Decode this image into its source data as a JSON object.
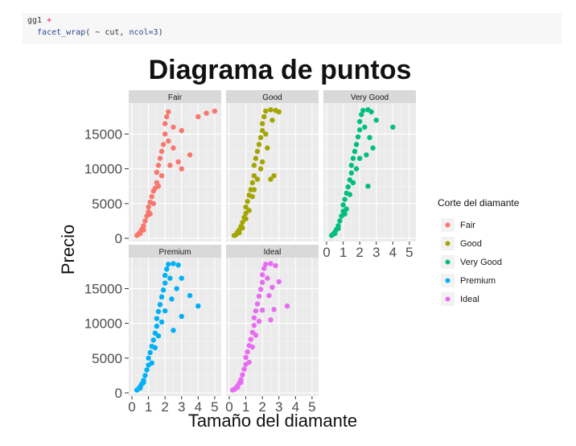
{
  "code": {
    "line1_a": "gg1 ",
    "line1_b": "+",
    "line2_a": "  facet_wrap",
    "line2_b": "( ~ cut, ",
    "line2_c": "ncol=3",
    "line2_d": ")"
  },
  "chart_data": {
    "type": "scatter",
    "title": "Diagrama de puntos",
    "xlabel": "Tamaño del diamante",
    "ylabel": "Precio",
    "xlim": [
      0,
      5.2
    ],
    "ylim": [
      0,
      19000
    ],
    "x_ticks": [
      0,
      1,
      2,
      3,
      4,
      5
    ],
    "y_ticks": [
      0,
      5000,
      10000,
      15000
    ],
    "y_tick_labels": [
      "0",
      "5000",
      "10000",
      "15000"
    ],
    "grid": true,
    "legend": {
      "title": "Corte del diamante",
      "position": "right"
    },
    "facets": [
      {
        "name": "Fair",
        "color": "#F8766D",
        "points": [
          [
            0.3,
            400
          ],
          [
            0.4,
            600
          ],
          [
            0.5,
            900
          ],
          [
            0.6,
            1300
          ],
          [
            0.7,
            1800
          ],
          [
            0.8,
            2500
          ],
          [
            0.9,
            3200
          ],
          [
            1.0,
            3800
          ],
          [
            1.0,
            4500
          ],
          [
            1.1,
            5200
          ],
          [
            1.2,
            6000
          ],
          [
            1.3,
            6800
          ],
          [
            1.4,
            7200
          ],
          [
            1.5,
            8000
          ],
          [
            1.5,
            9500
          ],
          [
            1.6,
            10500
          ],
          [
            1.7,
            11500
          ],
          [
            1.8,
            12500
          ],
          [
            1.9,
            13500
          ],
          [
            2.0,
            15000
          ],
          [
            2.0,
            16500
          ],
          [
            2.1,
            17500
          ],
          [
            2.2,
            18200
          ],
          [
            2.5,
            16000
          ],
          [
            3.0,
            15500
          ],
          [
            3.0,
            10000
          ],
          [
            4.0,
            17500
          ],
          [
            4.5,
            18000
          ],
          [
            5.0,
            18300
          ],
          [
            2.5,
            13000
          ],
          [
            2.2,
            14000
          ],
          [
            1.8,
            9000
          ],
          [
            1.3,
            5000
          ],
          [
            0.7,
            1200
          ],
          [
            0.5,
            700
          ],
          [
            3.5,
            12000
          ],
          [
            2.8,
            11000
          ],
          [
            1.6,
            7500
          ],
          [
            1.1,
            3500
          ],
          [
            2.3,
            10500
          ]
        ]
      },
      {
        "name": "Good",
        "color": "#A3A500",
        "points": [
          [
            0.3,
            400
          ],
          [
            0.4,
            500
          ],
          [
            0.5,
            900
          ],
          [
            0.6,
            1200
          ],
          [
            0.7,
            1700
          ],
          [
            0.8,
            2300
          ],
          [
            0.9,
            3000
          ],
          [
            1.0,
            3600
          ],
          [
            1.0,
            4500
          ],
          [
            1.1,
            5300
          ],
          [
            1.2,
            6200
          ],
          [
            1.3,
            7000
          ],
          [
            1.4,
            8000
          ],
          [
            1.5,
            9000
          ],
          [
            1.5,
            10500
          ],
          [
            1.6,
            11500
          ],
          [
            1.7,
            12500
          ],
          [
            1.8,
            13500
          ],
          [
            1.9,
            14500
          ],
          [
            2.0,
            15500
          ],
          [
            2.0,
            16500
          ],
          [
            2.1,
            17500
          ],
          [
            2.2,
            18300
          ],
          [
            2.5,
            18500
          ],
          [
            2.8,
            18400
          ],
          [
            3.0,
            18200
          ],
          [
            2.5,
            8500
          ],
          [
            2.3,
            13000
          ],
          [
            1.2,
            4000
          ],
          [
            0.8,
            1500
          ],
          [
            1.7,
            8500
          ],
          [
            2.6,
            17000
          ],
          [
            2.0,
            11000
          ],
          [
            1.4,
            6000
          ],
          [
            0.6,
            800
          ],
          [
            2.2,
            15000
          ],
          [
            1.9,
            10000
          ],
          [
            1.5,
            7000
          ],
          [
            2.7,
            9000
          ],
          [
            1.0,
            2800
          ]
        ]
      },
      {
        "name": "Very Good",
        "color": "#00BF7D",
        "points": [
          [
            0.3,
            400
          ],
          [
            0.4,
            600
          ],
          [
            0.5,
            900
          ],
          [
            0.6,
            1300
          ],
          [
            0.7,
            1800
          ],
          [
            0.8,
            2500
          ],
          [
            0.9,
            3200
          ],
          [
            1.0,
            3900
          ],
          [
            1.0,
            4800
          ],
          [
            1.1,
            5600
          ],
          [
            1.2,
            6500
          ],
          [
            1.3,
            7400
          ],
          [
            1.4,
            8400
          ],
          [
            1.5,
            9400
          ],
          [
            1.5,
            10500
          ],
          [
            1.6,
            11500
          ],
          [
            1.7,
            12500
          ],
          [
            1.8,
            13500
          ],
          [
            1.9,
            14600
          ],
          [
            2.0,
            15600
          ],
          [
            2.0,
            16800
          ],
          [
            2.1,
            17800
          ],
          [
            2.2,
            18400
          ],
          [
            2.5,
            18500
          ],
          [
            2.7,
            18200
          ],
          [
            3.0,
            17000
          ],
          [
            4.0,
            16000
          ],
          [
            2.5,
            7500
          ],
          [
            2.4,
            12000
          ],
          [
            1.2,
            4200
          ],
          [
            0.7,
            1400
          ],
          [
            1.6,
            8000
          ],
          [
            2.3,
            16000
          ],
          [
            2.0,
            11500
          ],
          [
            1.4,
            6300
          ],
          [
            0.5,
            700
          ],
          [
            2.6,
            14500
          ],
          [
            1.8,
            10000
          ],
          [
            1.1,
            3500
          ],
          [
            2.8,
            13000
          ]
        ]
      },
      {
        "name": "Premium",
        "color": "#00B0F6",
        "points": [
          [
            0.3,
            400
          ],
          [
            0.4,
            600
          ],
          [
            0.5,
            900
          ],
          [
            0.6,
            1300
          ],
          [
            0.7,
            1800
          ],
          [
            0.8,
            2500
          ],
          [
            0.9,
            3300
          ],
          [
            1.0,
            4000
          ],
          [
            1.0,
            5000
          ],
          [
            1.1,
            5800
          ],
          [
            1.2,
            6700
          ],
          [
            1.3,
            7600
          ],
          [
            1.4,
            8600
          ],
          [
            1.5,
            9600
          ],
          [
            1.5,
            10700
          ],
          [
            1.6,
            11700
          ],
          [
            1.7,
            12700
          ],
          [
            1.8,
            13800
          ],
          [
            1.9,
            14800
          ],
          [
            2.0,
            15800
          ],
          [
            2.0,
            16900
          ],
          [
            2.1,
            17800
          ],
          [
            2.2,
            18500
          ],
          [
            2.5,
            18600
          ],
          [
            2.8,
            18400
          ],
          [
            3.0,
            16500
          ],
          [
            3.5,
            14000
          ],
          [
            4.0,
            12500
          ],
          [
            2.5,
            9000
          ],
          [
            3.0,
            11000
          ],
          [
            2.4,
            13500
          ],
          [
            1.2,
            4300
          ],
          [
            0.7,
            1500
          ],
          [
            1.6,
            8200
          ],
          [
            2.3,
            16500
          ],
          [
            2.0,
            11800
          ],
          [
            1.4,
            6500
          ],
          [
            0.5,
            700
          ],
          [
            2.7,
            15000
          ],
          [
            1.8,
            10200
          ]
        ]
      },
      {
        "name": "Ideal",
        "color": "#E76BF3",
        "points": [
          [
            0.2,
            400
          ],
          [
            0.3,
            500
          ],
          [
            0.4,
            700
          ],
          [
            0.5,
            1000
          ],
          [
            0.6,
            1400
          ],
          [
            0.7,
            1900
          ],
          [
            0.8,
            2600
          ],
          [
            0.9,
            3400
          ],
          [
            1.0,
            4100
          ],
          [
            1.0,
            5100
          ],
          [
            1.1,
            5900
          ],
          [
            1.2,
            6800
          ],
          [
            1.3,
            7700
          ],
          [
            1.4,
            8700
          ],
          [
            1.5,
            9700
          ],
          [
            1.5,
            10800
          ],
          [
            1.6,
            11800
          ],
          [
            1.7,
            12800
          ],
          [
            1.8,
            13900
          ],
          [
            1.9,
            14900
          ],
          [
            2.0,
            15900
          ],
          [
            2.0,
            17000
          ],
          [
            2.1,
            17900
          ],
          [
            2.2,
            18500
          ],
          [
            2.5,
            18600
          ],
          [
            2.8,
            18300
          ],
          [
            3.0,
            16000
          ],
          [
            3.5,
            12500
          ],
          [
            2.5,
            10500
          ],
          [
            2.7,
            12000
          ],
          [
            2.4,
            14000
          ],
          [
            1.2,
            4400
          ],
          [
            0.7,
            1500
          ],
          [
            1.6,
            8300
          ],
          [
            2.3,
            16500
          ],
          [
            2.0,
            11900
          ],
          [
            1.4,
            6600
          ],
          [
            0.5,
            800
          ],
          [
            2.6,
            15200
          ],
          [
            1.8,
            10300
          ]
        ]
      }
    ]
  }
}
